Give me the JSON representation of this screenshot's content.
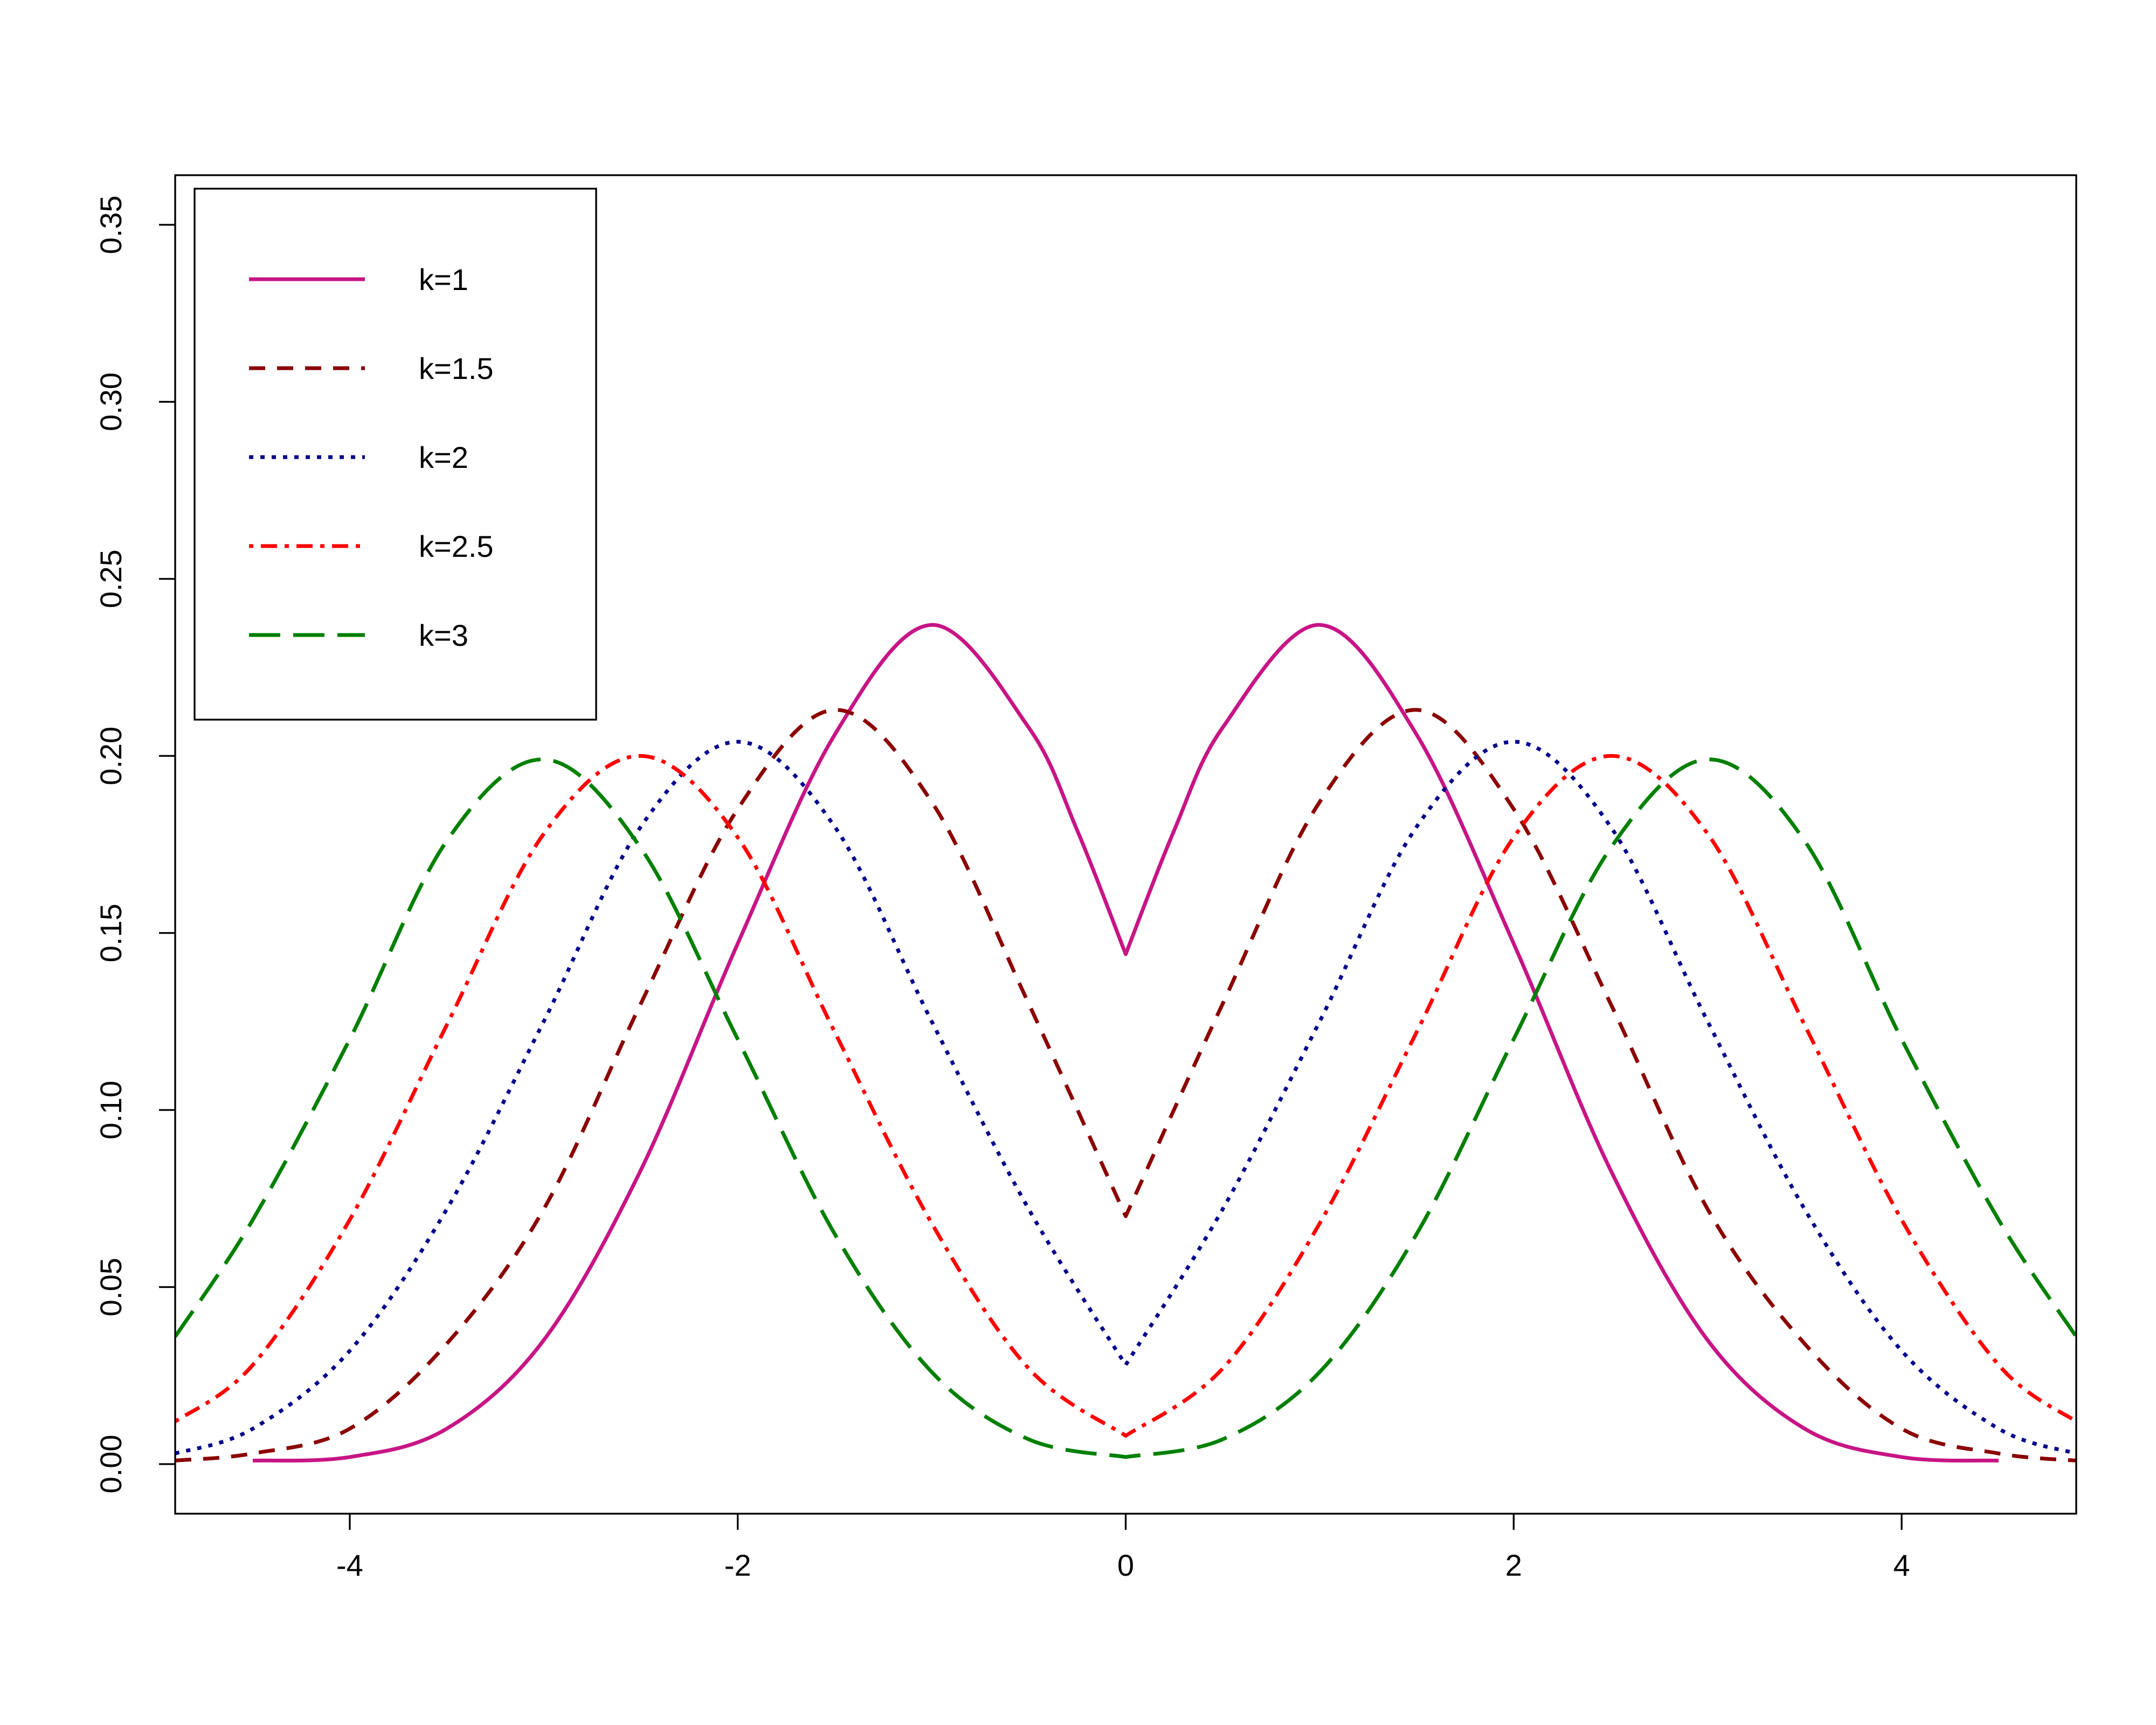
{
  "chart_data": {
    "type": "line",
    "title": "",
    "xlabel": "",
    "ylabel": "",
    "xlim": [
      -4.9,
      4.9
    ],
    "ylim": [
      -0.014,
      0.364
    ],
    "x_ticks": [
      -4,
      -2,
      0,
      2,
      4
    ],
    "x_tick_labels": [
      "-4",
      "-2",
      "0",
      "2",
      "4"
    ],
    "y_ticks": [
      0.0,
      0.05,
      0.1,
      0.15,
      0.2,
      0.25,
      0.3,
      0.35
    ],
    "y_tick_labels": [
      "0.00",
      "0.05",
      "0.10",
      "0.15",
      "0.20",
      "0.25",
      "0.30",
      "0.35"
    ],
    "grid": false,
    "legend_position": "top-left",
    "series": [
      {
        "name": "k=1",
        "color": "#c71585",
        "dash": "solid",
        "x": [
          -4.5,
          -4.0,
          -3.5,
          -3.0,
          -2.5,
          -2.0,
          -1.5,
          -1.0,
          -0.5,
          -0.25,
          0,
          0.25,
          0.5,
          1.0,
          1.5,
          2.0,
          2.5,
          3.0,
          3.5,
          4.0,
          4.5
        ],
        "y": [
          0.001,
          0.002,
          0.01,
          0.035,
          0.083,
          0.147,
          0.206,
          0.237,
          0.208,
          0.179,
          0.144,
          0.179,
          0.208,
          0.237,
          0.206,
          0.147,
          0.083,
          0.035,
          0.01,
          0.002,
          0.001
        ]
      },
      {
        "name": "k=1.5",
        "color": "#8b0000",
        "dash": "dashed",
        "x": [
          -4.9,
          -4.5,
          -4.0,
          -3.5,
          -3.0,
          -2.5,
          -2.0,
          -1.5,
          -1.0,
          -0.5,
          0,
          0.5,
          1.0,
          1.5,
          2.0,
          2.5,
          3.0,
          3.5,
          4.0,
          4.5,
          4.9
        ],
        "y": [
          0.001,
          0.003,
          0.01,
          0.034,
          0.072,
          0.13,
          0.185,
          0.213,
          0.187,
          0.13,
          0.07,
          0.13,
          0.187,
          0.213,
          0.185,
          0.13,
          0.072,
          0.034,
          0.01,
          0.003,
          0.001
        ]
      },
      {
        "name": "k=2",
        "color": "#00008b",
        "dash": "dotted",
        "x": [
          -4.9,
          -4.5,
          -4.0,
          -3.5,
          -3.0,
          -2.5,
          -2.0,
          -1.5,
          -1.0,
          -0.5,
          0,
          0.5,
          1.0,
          1.5,
          2.0,
          2.5,
          3.0,
          3.5,
          4.0,
          4.5,
          4.9
        ],
        "y": [
          0.003,
          0.01,
          0.032,
          0.072,
          0.125,
          0.18,
          0.204,
          0.18,
          0.125,
          0.072,
          0.028,
          0.072,
          0.125,
          0.18,
          0.204,
          0.18,
          0.125,
          0.072,
          0.032,
          0.01,
          0.003
        ]
      },
      {
        "name": "k=2.5",
        "color": "#ff0000",
        "dash": "dotdash",
        "x": [
          -4.9,
          -4.5,
          -4.0,
          -3.5,
          -3.0,
          -2.5,
          -2.0,
          -1.5,
          -1.0,
          -0.5,
          0,
          0.5,
          1.0,
          1.5,
          2.0,
          2.5,
          3.0,
          3.5,
          4.0,
          4.5,
          4.9
        ],
        "y": [
          0.012,
          0.028,
          0.069,
          0.124,
          0.178,
          0.2,
          0.177,
          0.122,
          0.068,
          0.027,
          0.008,
          0.027,
          0.068,
          0.122,
          0.177,
          0.2,
          0.178,
          0.124,
          0.069,
          0.028,
          0.012
        ]
      },
      {
        "name": "k=3",
        "color": "#008000",
        "dash": "longdash",
        "x": [
          -4.9,
          -4.5,
          -4.0,
          -3.5,
          -3.0,
          -2.5,
          -2.0,
          -1.5,
          -1.0,
          -0.5,
          0,
          0.5,
          1.0,
          1.5,
          2.0,
          2.5,
          3.0,
          3.5,
          4.0,
          4.5,
          4.9
        ],
        "y": [
          0.036,
          0.069,
          0.12,
          0.176,
          0.199,
          0.174,
          0.12,
          0.065,
          0.026,
          0.007,
          0.002,
          0.007,
          0.026,
          0.065,
          0.12,
          0.174,
          0.199,
          0.176,
          0.12,
          0.069,
          0.036
        ]
      }
    ]
  }
}
